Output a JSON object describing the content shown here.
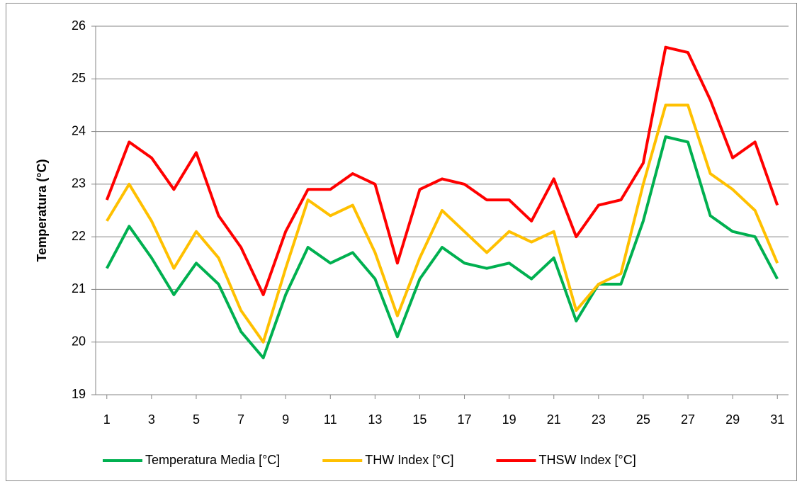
{
  "chart_data": {
    "type": "line",
    "y_label": "Temperatura (°C)",
    "x": [
      1,
      2,
      3,
      4,
      5,
      6,
      7,
      8,
      9,
      10,
      11,
      12,
      13,
      14,
      15,
      16,
      17,
      18,
      19,
      20,
      21,
      22,
      23,
      24,
      25,
      26,
      27,
      28,
      29,
      30,
      31
    ],
    "xlim": [
      0.5,
      31.5
    ],
    "xticks": [
      1,
      3,
      5,
      7,
      9,
      11,
      13,
      15,
      17,
      19,
      21,
      23,
      25,
      27,
      29,
      31
    ],
    "ylim": [
      19,
      26
    ],
    "yticks": [
      19,
      20,
      21,
      22,
      23,
      24,
      25,
      26
    ],
    "grid": true,
    "legend": "bottom",
    "series": [
      {
        "name": "Temperatura Media [°C]",
        "color": "#00b050",
        "values": [
          21.4,
          22.2,
          21.6,
          20.9,
          21.5,
          21.1,
          20.2,
          19.7,
          20.9,
          21.8,
          21.5,
          21.7,
          21.2,
          20.1,
          21.2,
          21.8,
          21.5,
          21.4,
          21.5,
          21.2,
          21.6,
          20.4,
          21.1,
          21.1,
          22.3,
          23.9,
          23.8,
          22.4,
          22.1,
          22.0,
          21.2
        ]
      },
      {
        "name": "THW Index [°C]",
        "color": "#ffc000",
        "values": [
          22.3,
          23.0,
          22.3,
          21.4,
          22.1,
          21.6,
          20.6,
          20.0,
          21.4,
          22.7,
          22.4,
          22.6,
          21.7,
          20.5,
          21.6,
          22.5,
          22.1,
          21.7,
          22.1,
          21.9,
          22.1,
          20.6,
          21.1,
          21.3,
          23.0,
          24.5,
          24.5,
          23.2,
          22.9,
          22.5,
          21.5
        ]
      },
      {
        "name": "THSW Index [°C]",
        "color": "#ff0000",
        "values": [
          22.7,
          23.8,
          23.5,
          22.9,
          23.6,
          22.4,
          21.8,
          20.9,
          22.1,
          22.9,
          22.9,
          23.2,
          23.0,
          21.5,
          22.9,
          23.1,
          23.0,
          22.7,
          22.7,
          22.3,
          23.1,
          22.0,
          22.6,
          22.7,
          23.4,
          25.6,
          25.5,
          24.6,
          23.5,
          23.8,
          22.6
        ]
      }
    ]
  }
}
